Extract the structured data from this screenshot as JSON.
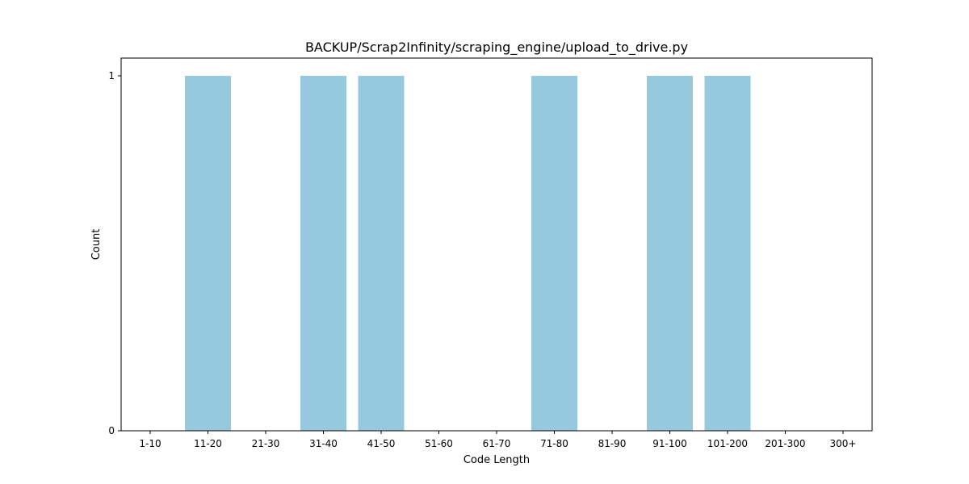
{
  "chart_data": {
    "type": "bar",
    "title": "BACKUP/Scrap2Infinity/scraping_engine/upload_to_drive.py",
    "xlabel": "Code Length",
    "ylabel": "Count",
    "categories": [
      "1-10",
      "11-20",
      "21-30",
      "31-40",
      "41-50",
      "51-60",
      "61-70",
      "71-80",
      "81-90",
      "91-100",
      "101-200",
      "201-300",
      "300+"
    ],
    "values": [
      0,
      1,
      0,
      1,
      1,
      0,
      0,
      1,
      0,
      1,
      1,
      0,
      0
    ],
    "ylim": [
      0,
      1.05
    ],
    "yticks": [
      0,
      1
    ],
    "bar_color": "#96c9dd",
    "grid": false,
    "legend": "none"
  }
}
